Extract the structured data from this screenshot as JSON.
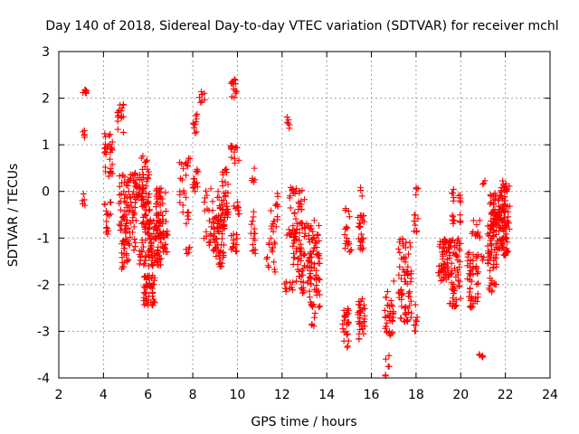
{
  "chart_data": {
    "type": "scatter",
    "title": "Day 140 of 2018, Sidereal Day-to-day VTEC variation (SDTVAR) for receiver mchl",
    "xlabel": "GPS time / hours",
    "ylabel": "SDTVAR / TECUs",
    "xlim": [
      2,
      24
    ],
    "ylim": [
      -4,
      3
    ],
    "xticks": [
      2,
      4,
      6,
      8,
      10,
      12,
      14,
      16,
      18,
      20,
      22,
      24
    ],
    "yticks": [
      -4,
      -3,
      -2,
      -1,
      0,
      1,
      2,
      3
    ],
    "grid": true,
    "marker": "+",
    "color": "#ff0000",
    "series": [
      {
        "name": "SDTVAR",
        "clusters": [
          {
            "x": [
              3.05,
              3.25
            ],
            "y": [
              2.1,
              2.2
            ],
            "n": 8
          },
          {
            "x": [
              3.05,
              3.2
            ],
            "y": [
              1.15,
              1.35
            ],
            "n": 5
          },
          {
            "x": [
              3.05,
              3.2
            ],
            "y": [
              -0.3,
              -0.05
            ],
            "n": 5
          },
          {
            "x": [
              4.05,
              4.4
            ],
            "y": [
              0.3,
              1.25
            ],
            "n": 30
          },
          {
            "x": [
              4.05,
              4.35
            ],
            "y": [
              -0.95,
              -0.2
            ],
            "n": 16
          },
          {
            "x": [
              4.6,
              4.9
            ],
            "y": [
              1.2,
              1.9
            ],
            "n": 18
          },
          {
            "x": [
              4.7,
              5.1
            ],
            "y": [
              -0.9,
              0.35
            ],
            "n": 45
          },
          {
            "x": [
              4.8,
              5.15
            ],
            "y": [
              -1.7,
              -1.0
            ],
            "n": 25
          },
          {
            "x": [
              5.1,
              5.5
            ],
            "y": [
              -1.3,
              0.4
            ],
            "n": 40
          },
          {
            "x": [
              5.3,
              5.8
            ],
            "y": [
              -0.2,
              0.4
            ],
            "n": 30
          },
          {
            "x": [
              5.6,
              5.9
            ],
            "y": [
              -1.6,
              -1.0
            ],
            "n": 18
          },
          {
            "x": [
              5.7,
              6.1
            ],
            "y": [
              -0.9,
              0.8
            ],
            "n": 55
          },
          {
            "x": [
              5.8,
              6.3
            ],
            "y": [
              -2.45,
              -1.8
            ],
            "n": 50
          },
          {
            "x": [
              6.0,
              6.6
            ],
            "y": [
              -1.6,
              -0.6
            ],
            "n": 80
          },
          {
            "x": [
              6.3,
              6.8
            ],
            "y": [
              -0.7,
              0.1
            ],
            "n": 35
          },
          {
            "x": [
              6.5,
              6.9
            ],
            "y": [
              -1.3,
              -0.85
            ],
            "n": 25
          },
          {
            "x": [
              7.4,
              7.7
            ],
            "y": [
              -0.5,
              0.65
            ],
            "n": 15
          },
          {
            "x": [
              7.7,
              7.9
            ],
            "y": [
              0.5,
              0.8
            ],
            "n": 6
          },
          {
            "x": [
              7.7,
              7.9
            ],
            "y": [
              -1.35,
              -1.2
            ],
            "n": 5
          },
          {
            "x": [
              7.7,
              7.9
            ],
            "y": [
              -0.7,
              -0.2
            ],
            "n": 6
          },
          {
            "x": [
              8.0,
              8.3
            ],
            "y": [
              0.0,
              0.5
            ],
            "n": 15
          },
          {
            "x": [
              8.0,
              8.2
            ],
            "y": [
              1.2,
              1.8
            ],
            "n": 10
          },
          {
            "x": [
              8.3,
              8.55
            ],
            "y": [
              1.9,
              2.15
            ],
            "n": 8
          },
          {
            "x": [
              8.5,
              9.0
            ],
            "y": [
              -1.2,
              0.1
            ],
            "n": 25
          },
          {
            "x": [
              8.9,
              9.4
            ],
            "y": [
              -1.65,
              -0.5
            ],
            "n": 50
          },
          {
            "x": [
              9.1,
              9.6
            ],
            "y": [
              -0.8,
              0.0
            ],
            "n": 40
          },
          {
            "x": [
              9.3,
              9.6
            ],
            "y": [
              0.1,
              0.5
            ],
            "n": 10
          },
          {
            "x": [
              9.7,
              10.0
            ],
            "y": [
              2.0,
              2.45
            ],
            "n": 14
          },
          {
            "x": [
              9.7,
              10.1
            ],
            "y": [
              0.6,
              1.0
            ],
            "n": 14
          },
          {
            "x": [
              9.7,
              10.0
            ],
            "y": [
              -1.3,
              -0.9
            ],
            "n": 16
          },
          {
            "x": [
              9.8,
              10.1
            ],
            "y": [
              -0.5,
              -0.2
            ],
            "n": 10
          },
          {
            "x": [
              10.6,
              10.8
            ],
            "y": [
              -1.4,
              -0.3
            ],
            "n": 15
          },
          {
            "x": [
              10.6,
              10.8
            ],
            "y": [
              0.2,
              0.55
            ],
            "n": 5
          },
          {
            "x": [
              11.3,
              11.7
            ],
            "y": [
              -1.75,
              -1.0
            ],
            "n": 15
          },
          {
            "x": [
              11.5,
              11.8
            ],
            "y": [
              -0.9,
              -0.4
            ],
            "n": 10
          },
          {
            "x": [
              11.7,
              11.9
            ],
            "y": [
              -0.4,
              0.0
            ],
            "n": 6
          },
          {
            "x": [
              12.2,
              12.4
            ],
            "y": [
              1.35,
              1.6
            ],
            "n": 6
          },
          {
            "x": [
              12.1,
              12.5
            ],
            "y": [
              -2.2,
              -1.9
            ],
            "n": 10
          },
          {
            "x": [
              12.2,
              12.5
            ],
            "y": [
              -1.2,
              -0.7
            ],
            "n": 10
          },
          {
            "x": [
              12.3,
              12.5
            ],
            "y": [
              -0.4,
              0.1
            ],
            "n": 8
          },
          {
            "x": [
              12.5,
              13.0
            ],
            "y": [
              -2.2,
              0.1
            ],
            "n": 75
          },
          {
            "x": [
              12.9,
              13.3
            ],
            "y": [
              -2.0,
              -0.6
            ],
            "n": 25
          },
          {
            "x": [
              13.2,
              13.7
            ],
            "y": [
              -2.5,
              -0.6
            ],
            "n": 70
          },
          {
            "x": [
              13.3,
              13.5
            ],
            "y": [
              -2.9,
              -2.6
            ],
            "n": 5
          },
          {
            "x": [
              14.7,
              15.0
            ],
            "y": [
              -3.35,
              -2.5
            ],
            "n": 25
          },
          {
            "x": [
              14.8,
              15.1
            ],
            "y": [
              -1.3,
              -0.35
            ],
            "n": 20
          },
          {
            "x": [
              15.4,
              15.7
            ],
            "y": [
              -3.2,
              -2.3
            ],
            "n": 35
          },
          {
            "x": [
              15.4,
              15.7
            ],
            "y": [
              -1.3,
              -0.5
            ],
            "n": 25
          },
          {
            "x": [
              15.5,
              15.6
            ],
            "y": [
              -0.1,
              0.1
            ],
            "n": 3
          },
          {
            "x": [
              16.6,
              16.8
            ],
            "y": [
              -4.0,
              -3.5
            ],
            "n": 6
          },
          {
            "x": [
              16.6,
              17.0
            ],
            "y": [
              -3.1,
              -1.9
            ],
            "n": 35
          },
          {
            "x": [
              17.2,
              17.8
            ],
            "y": [
              -2.8,
              -1.0
            ],
            "n": 70
          },
          {
            "x": [
              17.9,
              18.1
            ],
            "y": [
              -3.0,
              -2.3
            ],
            "n": 8
          },
          {
            "x": [
              17.9,
              18.1
            ],
            "y": [
              -1.0,
              -0.4
            ],
            "n": 8
          },
          {
            "x": [
              17.9,
              18.1
            ],
            "y": [
              -0.1,
              0.1
            ],
            "n": 4
          },
          {
            "x": [
              19.0,
              19.5
            ],
            "y": [
              -2.0,
              -1.0
            ],
            "n": 60
          },
          {
            "x": [
              19.5,
              20.0
            ],
            "y": [
              -2.5,
              -1.0
            ],
            "n": 60
          },
          {
            "x": [
              19.6,
              20.0
            ],
            "y": [
              -0.7,
              0.1
            ],
            "n": 20
          },
          {
            "x": [
              20.3,
              20.8
            ],
            "y": [
              -2.5,
              -1.3
            ],
            "n": 50
          },
          {
            "x": [
              20.5,
              20.9
            ],
            "y": [
              -1.0,
              -0.6
            ],
            "n": 12
          },
          {
            "x": [
              20.8,
              21.0
            ],
            "y": [
              -3.6,
              -3.35
            ],
            "n": 5
          },
          {
            "x": [
              20.9,
              21.1
            ],
            "y": [
              0.1,
              0.3
            ],
            "n": 3
          },
          {
            "x": [
              20.9,
              21.3
            ],
            "y": [
              -1.5,
              -1.3
            ],
            "n": 10
          },
          {
            "x": [
              21.2,
              21.6
            ],
            "y": [
              -2.2,
              -0.6
            ],
            "n": 50
          },
          {
            "x": [
              21.3,
              22.0
            ],
            "y": [
              -0.9,
              0.0
            ],
            "n": 70
          },
          {
            "x": [
              21.6,
              22.2
            ],
            "y": [
              -1.4,
              -0.3
            ],
            "n": 70
          },
          {
            "x": [
              21.8,
              22.2
            ],
            "y": [
              0.0,
              0.25
            ],
            "n": 15
          }
        ]
      }
    ]
  }
}
